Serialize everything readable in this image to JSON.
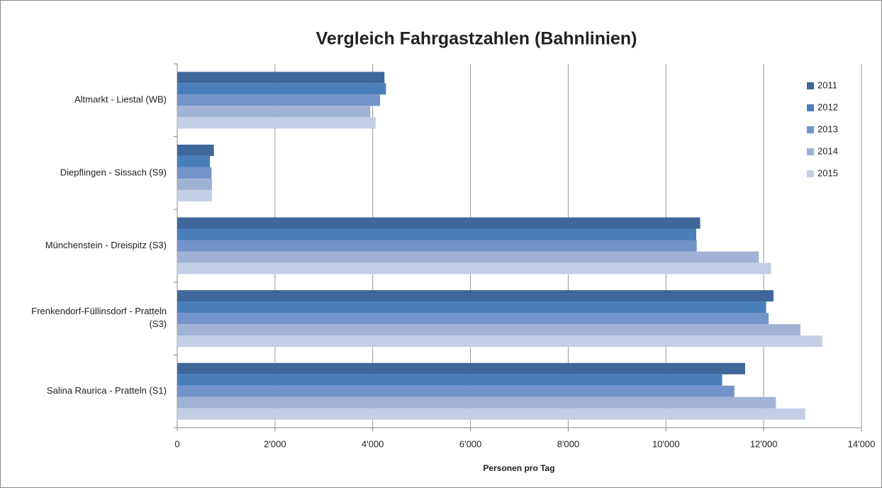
{
  "chart_data": {
    "type": "barh",
    "title": "Vergleich Fahrgastzahlen (Bahnlinien)",
    "categories": [
      "Altmarkt - Liestal (WB)",
      "Diepflingen - Sissach (S9)",
      "Münchenstein - Dreispitz (S3)",
      "Frenkendorf-Füllinsdorf - Pratteln (S3)",
      "Salina Raurica - Pratteln (S1)"
    ],
    "series": [
      {
        "name": "2011",
        "color": "#3f6799",
        "values": [
          4240,
          750,
          10700,
          12200,
          11620
        ]
      },
      {
        "name": "2012",
        "color": "#4a7ebb",
        "values": [
          4270,
          670,
          10620,
          12050,
          11150
        ]
      },
      {
        "name": "2013",
        "color": "#7394c9",
        "values": [
          4150,
          700,
          10630,
          12100,
          11400
        ]
      },
      {
        "name": "2014",
        "color": "#a0b3d6",
        "values": [
          3950,
          710,
          11900,
          12750,
          12250
        ]
      },
      {
        "name": "2015",
        "color": "#c4cfe6",
        "values": [
          4060,
          710,
          12150,
          13200,
          12850
        ]
      }
    ],
    "xlabel": "Personen pro Tag",
    "xlim": [
      0,
      14000
    ],
    "xticks": [
      0,
      {
        "value": 2000,
        "label": "2'000"
      },
      {
        "value": 4000,
        "label": "4'000"
      },
      {
        "value": 6000,
        "label": "6'000"
      },
      {
        "value": 8000,
        "label": "8'000"
      },
      {
        "value": 10000,
        "label": "10'000"
      },
      {
        "value": 12000,
        "label": "12'000"
      },
      {
        "value": 14000,
        "label": "14'000"
      }
    ],
    "grid": true,
    "legend": "upper right"
  }
}
